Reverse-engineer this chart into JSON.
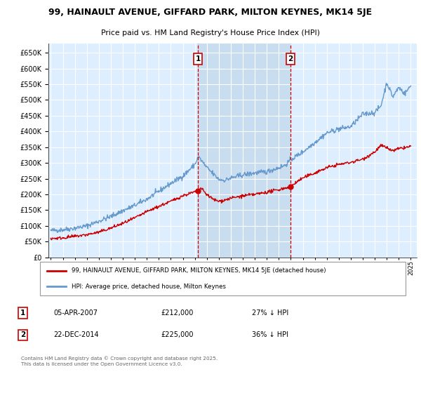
{
  "title": "99, HAINAULT AVENUE, GIFFARD PARK, MILTON KEYNES, MK14 5JE",
  "subtitle": "Price paid vs. HM Land Registry's House Price Index (HPI)",
  "legend_line1": "99, HAINAULT AVENUE, GIFFARD PARK, MILTON KEYNES, MK14 5JE (detached house)",
  "legend_line2": "HPI: Average price, detached house, Milton Keynes",
  "annotation1_date": "05-APR-2007",
  "annotation1_price": "£212,000",
  "annotation1_hpi": "27% ↓ HPI",
  "annotation2_date": "22-DEC-2014",
  "annotation2_price": "£225,000",
  "annotation2_hpi": "36% ↓ HPI",
  "footer": "Contains HM Land Registry data © Crown copyright and database right 2025.\nThis data is licensed under the Open Government Licence v3.0.",
  "plot_bg_color": "#ddeeff",
  "shaded_region_color": "#c8ddf0",
  "grid_color": "#ffffff",
  "red_line_color": "#cc0000",
  "blue_line_color": "#6699cc",
  "annotation_vline_color": "#cc0000",
  "annotation_box_color": "#cc0000",
  "ylim": [
    0,
    680000
  ],
  "yticks": [
    0,
    50000,
    100000,
    150000,
    200000,
    250000,
    300000,
    350000,
    400000,
    450000,
    500000,
    550000,
    600000,
    650000
  ],
  "xstart_year": 1995,
  "xend_year": 2025,
  "sale1_year": 2007.27,
  "sale1_price": 212000,
  "sale2_year": 2014.97,
  "sale2_price": 225000
}
